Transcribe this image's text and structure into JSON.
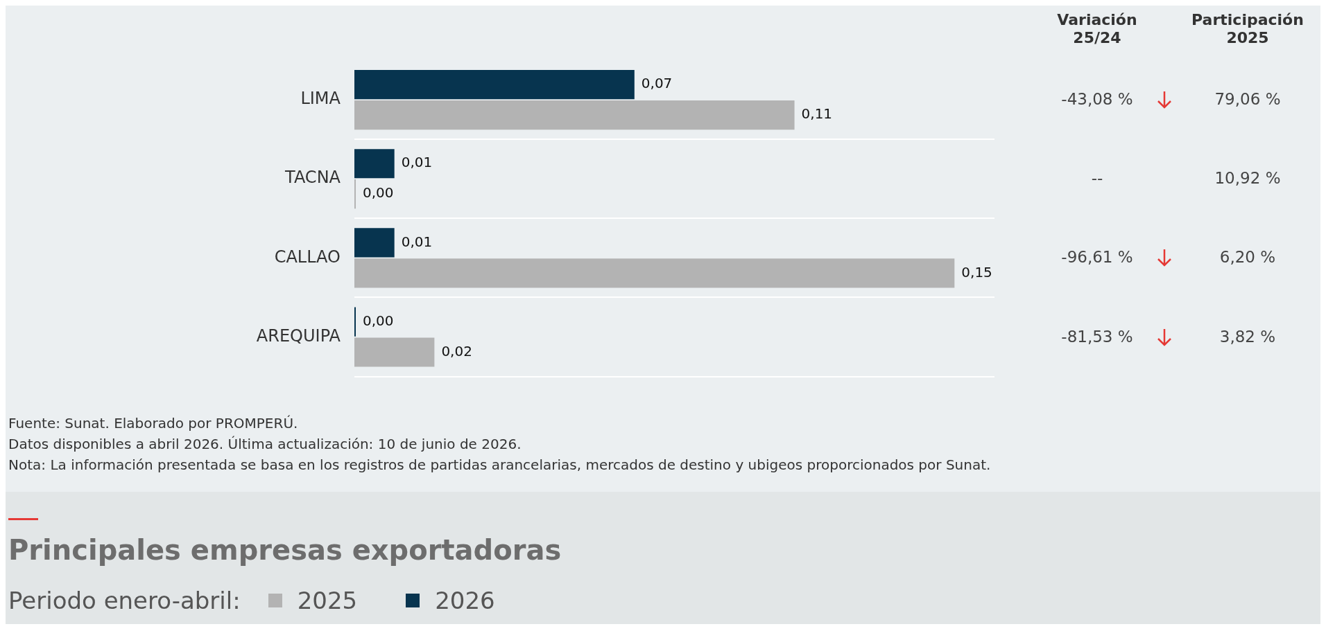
{
  "chart_data": {
    "type": "bar",
    "orientation": "horizontal",
    "categories": [
      "LIMA",
      "TACNA",
      "CALLAO",
      "AREQUIPA"
    ],
    "series": [
      {
        "name": "2026",
        "color": "#07344f",
        "values": [
          0.07,
          0.01,
          0.01,
          0.0
        ],
        "value_labels": [
          "0,07",
          "0,01",
          "0,01",
          "0,00"
        ]
      },
      {
        "name": "2025",
        "color": "#b3b3b3",
        "values": [
          0.11,
          0.0,
          0.15,
          0.02
        ],
        "value_labels": [
          "0,11",
          "0,00",
          "0,15",
          "0,02"
        ]
      }
    ],
    "grid": "y",
    "legend": "bottom",
    "legend_title": "Periodo enero-abril:",
    "annotations": [
      "Variación 25/24",
      "Participación 2025",
      "-43,08 %",
      "79,06 %",
      "--",
      "10,92 %",
      "-96,61 %",
      "6,20 %",
      "-81,53 %",
      "3,82 %",
      "Fuente: Sunat. Elaborado por PROMPERÚ.",
      "Datos disponibles a abril 2026. Última actualización: 10 de junio de 2026.",
      "Nota: La información presentada se basa en los registros de partidas arancelarias, mercados de destino y ubigeos proporcionados por Sunat.",
      "Principales empresas exportadoras"
    ]
  }
}
